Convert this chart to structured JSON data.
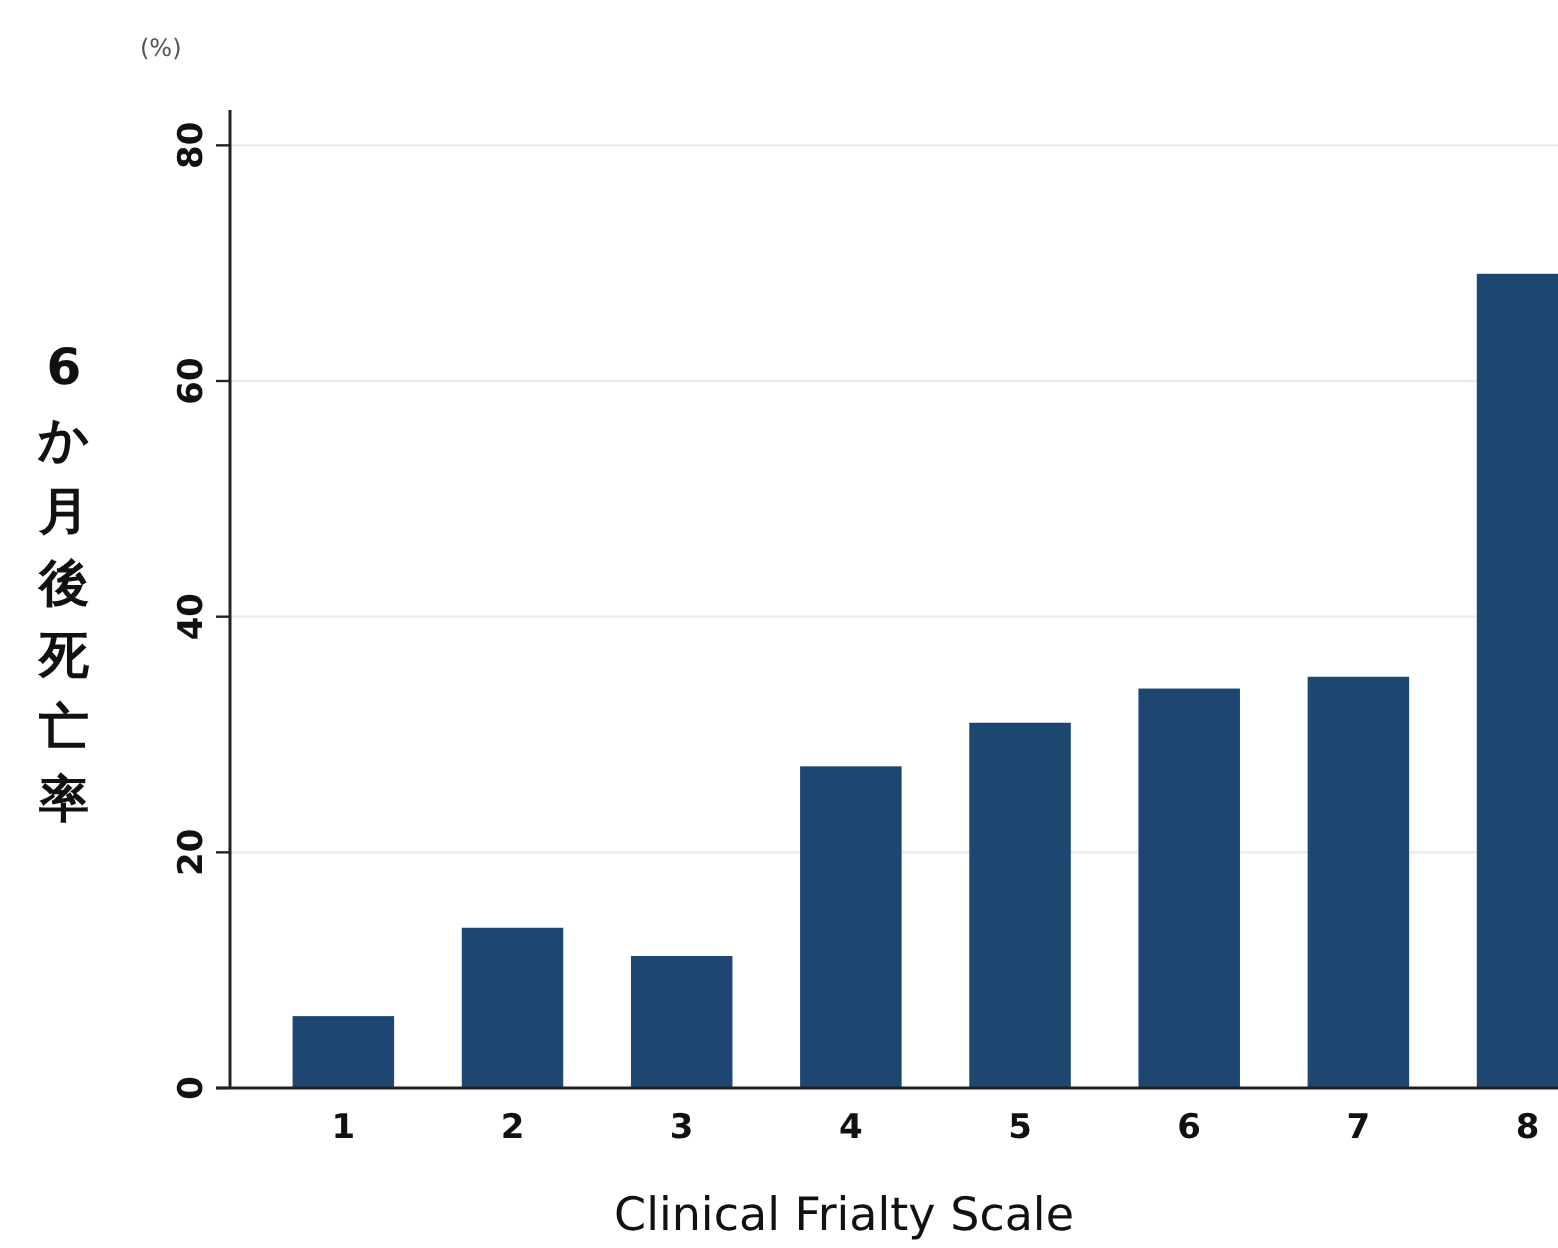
{
  "chart_data": {
    "type": "bar",
    "xlabel": "Clinical Frialty Scale",
    "ylabel": "6か月後死亡率",
    "annotations": [
      "(%)"
    ],
    "categories": [
      "1",
      "2",
      "3",
      "4",
      "5",
      "6",
      "7",
      "8"
    ],
    "series": [
      {
        "color": "#1d4771",
        "values": [
          6.1,
          13.6,
          11.2,
          27.3,
          31.0,
          33.9,
          34.9,
          69.1
        ]
      }
    ],
    "ylim": [
      0,
      83
    ],
    "yticks": [
      0,
      20,
      40,
      60,
      80
    ],
    "grid": "y"
  }
}
